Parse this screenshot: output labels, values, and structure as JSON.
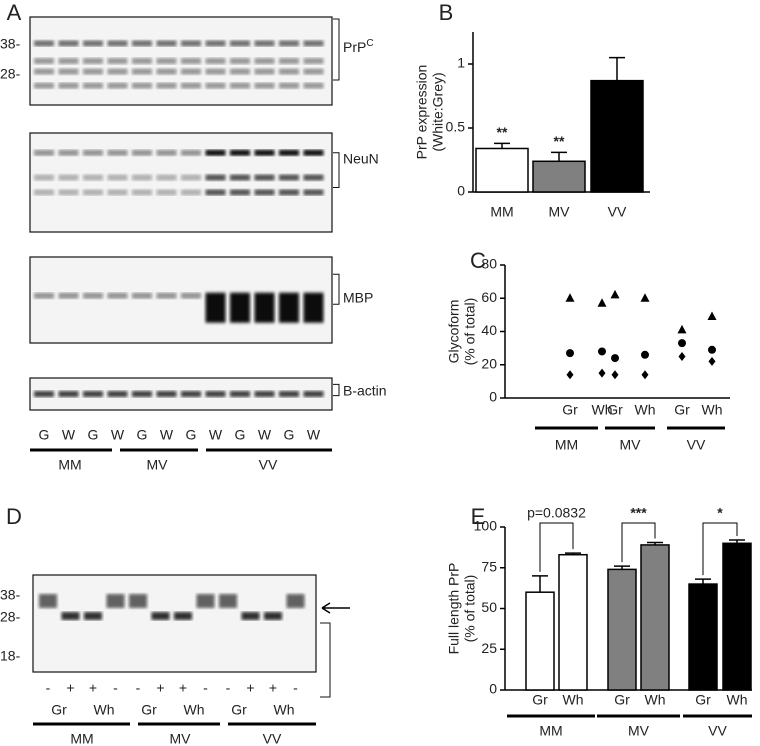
{
  "blots": {
    "panel_a": {
      "letter": "A",
      "markers": [
        "38-",
        "28-"
      ],
      "prp": {
        "base": "PrP",
        "sup": "C"
      },
      "labels": [
        "NeuN",
        "MBP",
        "B-actin"
      ],
      "lanes": [
        "G",
        "W",
        "G",
        "W",
        "G",
        "W",
        "G",
        "W",
        "G",
        "W",
        "G",
        "W"
      ],
      "groups": [
        "MM",
        "MV",
        "VV"
      ]
    },
    "panel_d": {
      "letter": "D",
      "markers": [
        "38-",
        "28-",
        "18-"
      ],
      "signs": [
        "-",
        "+",
        "+",
        "-",
        "-",
        "+",
        "+",
        "-",
        "-",
        "+",
        "+",
        "-"
      ],
      "tissue": [
        "Gr",
        "Wh",
        "Gr",
        "Wh",
        "Gr",
        "Wh"
      ],
      "groups": [
        "MM",
        "MV",
        "VV"
      ]
    }
  },
  "chart_data": [
    {
      "type": "bar",
      "letter": "B",
      "ylabel": "PrP expression",
      "ylabel2": "(White:Grey)",
      "categories": [
        "MM",
        "MV",
        "VV"
      ],
      "values": [
        0.34,
        0.24,
        0.87
      ],
      "errors": [
        0.04,
        0.07,
        0.18
      ],
      "colors": [
        "#ffffff",
        "#808080",
        "#000000"
      ],
      "value_annotations": [
        "**",
        "**",
        null
      ],
      "ylim": [
        0,
        1.25
      ],
      "yticks": [
        0,
        0.5,
        1
      ]
    },
    {
      "type": "scatter",
      "letter": "C",
      "ylabel": "Glycoform",
      "ylabel2": "(% of total)",
      "categories": [
        "Gr",
        "Wh",
        "Gr",
        "Wh",
        "Gr",
        "Wh"
      ],
      "groups": [
        "MM",
        "MV",
        "VV"
      ],
      "series": [
        {
          "marker": "triangle",
          "color": "#000000",
          "values": [
            60,
            57,
            62,
            60,
            41,
            49
          ]
        },
        {
          "marker": "circle",
          "color": "#000000",
          "values": [
            27,
            28,
            24,
            26,
            33,
            29
          ]
        },
        {
          "marker": "diamond",
          "color": "#000000",
          "values": [
            14,
            15,
            14,
            14,
            25,
            22
          ]
        }
      ],
      "ylim": [
        0,
        80
      ],
      "yticks": [
        0,
        20,
        40,
        60,
        80
      ]
    },
    {
      "type": "bar",
      "letter": "E",
      "ylabel": "Full length PrP",
      "ylabel2": "(% of total)",
      "categories": [
        "Gr",
        "Wh",
        "Gr",
        "Wh",
        "Gr",
        "Wh"
      ],
      "groups": [
        "MM",
        "MV",
        "VV"
      ],
      "values": [
        60,
        83,
        74,
        89,
        65,
        90
      ],
      "errors": [
        10,
        1,
        2,
        1.5,
        3,
        2
      ],
      "colors": [
        "#ffffff",
        "#ffffff",
        "#808080",
        "#808080",
        "#000000",
        "#000000"
      ],
      "annotations": [
        "p=0.0832",
        "***",
        "*"
      ],
      "ylim": [
        0,
        100
      ],
      "yticks": [
        0,
        25,
        50,
        75,
        100
      ]
    }
  ]
}
